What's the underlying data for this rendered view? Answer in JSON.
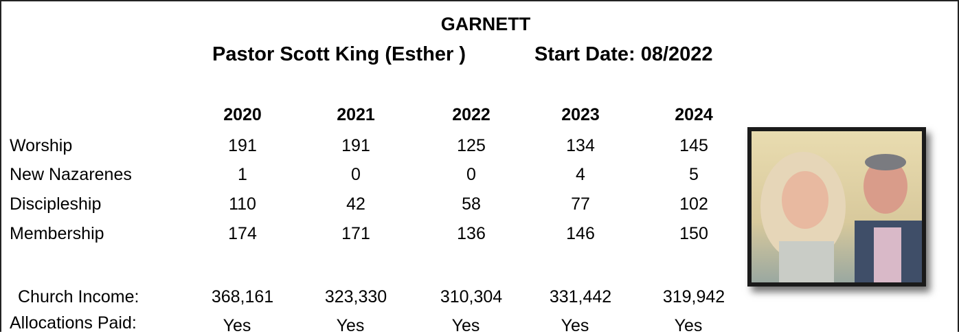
{
  "header": {
    "title": "GARNETT",
    "pastor": "Pastor Scott King (Esther )",
    "start_date": "Start Date: 08/2022"
  },
  "table": {
    "columns": [
      "2020",
      "2021",
      "2022",
      "2023",
      "2024"
    ],
    "rows": [
      {
        "label": "Worship",
        "values": [
          "191",
          "191",
          "125",
          "134",
          "145"
        ]
      },
      {
        "label": "New Nazarenes",
        "values": [
          "1",
          "0",
          "0",
          "4",
          "5"
        ]
      },
      {
        "label": "Discipleship",
        "values": [
          "110",
          "42",
          "58",
          "77",
          "102"
        ]
      },
      {
        "label": "Membership",
        "values": [
          "174",
          "171",
          "136",
          "146",
          "150"
        ]
      }
    ]
  },
  "finance": {
    "rows": [
      {
        "label": "Church Income:",
        "values": [
          "368,161",
          "323,330",
          "310,304",
          "331,442",
          "319,942"
        ]
      },
      {
        "label": "Allocations Paid:",
        "values": [
          "Yes",
          "Yes",
          "Yes",
          "Yes",
          "Yes"
        ]
      }
    ]
  }
}
